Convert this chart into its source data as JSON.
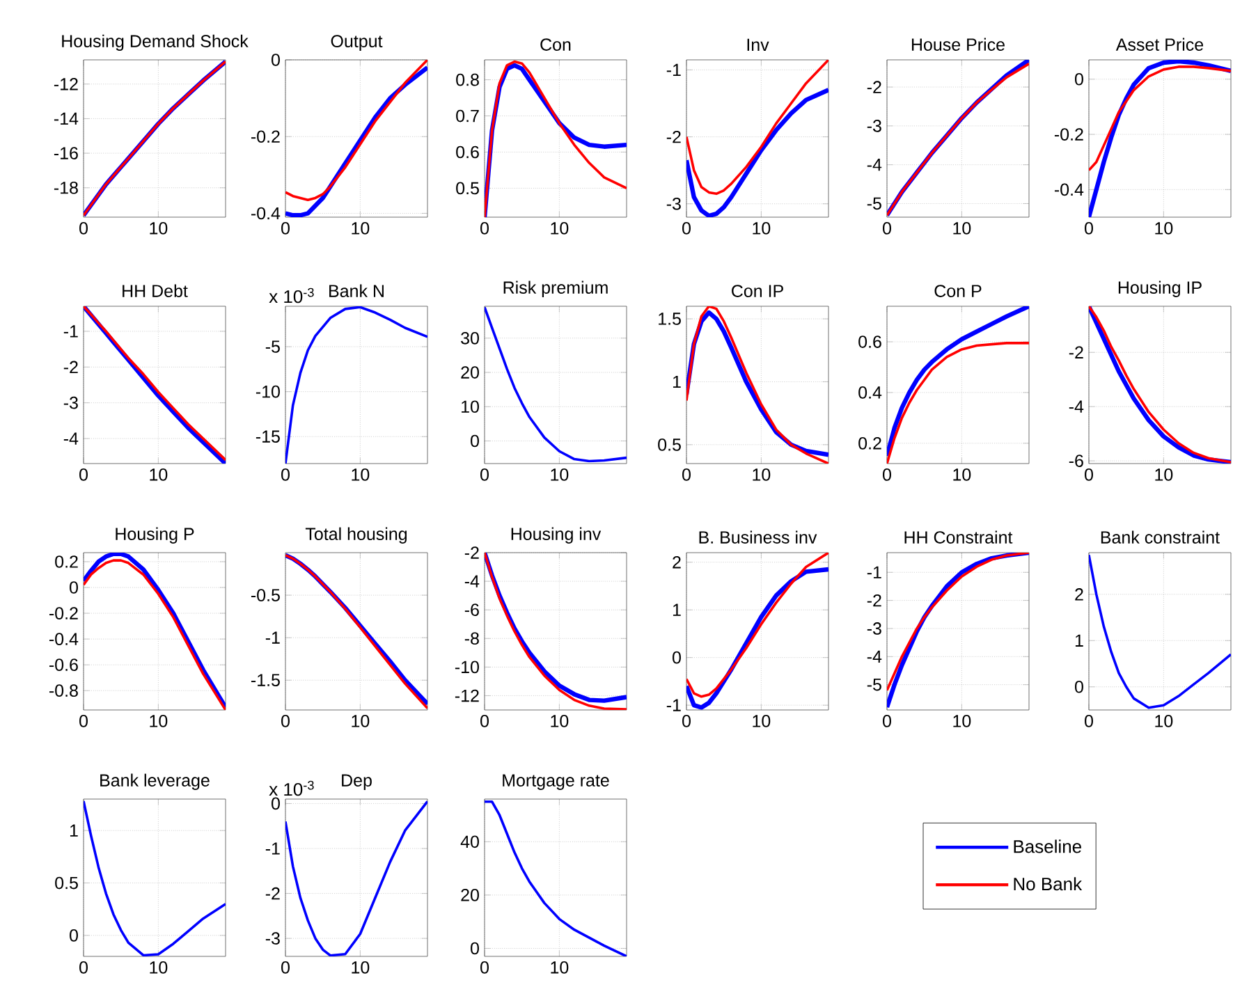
{
  "chart_data": [
    {
      "type": "line",
      "title": "Housing Demand Shock",
      "x": [
        0,
        1,
        2,
        3,
        4,
        5,
        6,
        8,
        10,
        12,
        14,
        16,
        19
      ],
      "xlim": [
        0,
        19
      ],
      "xticks": [
        0,
        10
      ],
      "ylim": [
        -19.7,
        -10.6
      ],
      "yticks": [
        -18,
        -16,
        -14,
        -12
      ],
      "grid": true,
      "legend": "bottom right",
      "series": [
        {
          "name": "Baseline",
          "color": "#0000ff",
          "values": [
            -19.6,
            -19.0,
            -18.4,
            -17.8,
            -17.3,
            -16.8,
            -16.3,
            -15.3,
            -14.3,
            -13.4,
            -12.6,
            -11.8,
            -10.7
          ]
        },
        {
          "name": "No Bank",
          "color": "#ff0000",
          "values": [
            -19.6,
            -19.0,
            -18.4,
            -17.8,
            -17.3,
            -16.8,
            -16.3,
            -15.3,
            -14.3,
            -13.4,
            -12.6,
            -11.8,
            -10.7
          ]
        }
      ]
    },
    {
      "type": "line",
      "title": "Output",
      "x": [
        0,
        1,
        2,
        3,
        4,
        5,
        6,
        8,
        10,
        12,
        14,
        16,
        19
      ],
      "xlim": [
        0,
        19
      ],
      "xticks": [
        0,
        10
      ],
      "ylim": [
        -0.41,
        0
      ],
      "yticks": [
        -0.4,
        -0.2,
        0
      ],
      "grid": true,
      "series": [
        {
          "color": "#0000ff",
          "values": [
            -0.4,
            -0.405,
            -0.405,
            -0.4,
            -0.38,
            -0.36,
            -0.33,
            -0.27,
            -0.21,
            -0.15,
            -0.1,
            -0.065,
            -0.02
          ]
        },
        {
          "color": "#ff0000",
          "values": [
            -0.345,
            -0.355,
            -0.36,
            -0.365,
            -0.36,
            -0.35,
            -0.33,
            -0.28,
            -0.22,
            -0.16,
            -0.11,
            -0.06,
            0
          ]
        }
      ]
    },
    {
      "type": "line",
      "title": "Con",
      "x": [
        0,
        1,
        2,
        3,
        4,
        5,
        6,
        8,
        10,
        12,
        14,
        16,
        19
      ],
      "xlim": [
        0,
        19
      ],
      "xticks": [
        0,
        10
      ],
      "ylim": [
        0.42,
        0.855
      ],
      "yticks": [
        0.5,
        0.6,
        0.7,
        0.8
      ],
      "grid": true,
      "series": [
        {
          "color": "#0000ff",
          "values": [
            0.42,
            0.66,
            0.78,
            0.83,
            0.84,
            0.83,
            0.8,
            0.74,
            0.68,
            0.64,
            0.62,
            0.615,
            0.62
          ]
        },
        {
          "color": "#ff0000",
          "values": [
            0.42,
            0.66,
            0.79,
            0.84,
            0.85,
            0.845,
            0.82,
            0.75,
            0.68,
            0.62,
            0.57,
            0.53,
            0.5
          ]
        }
      ]
    },
    {
      "type": "line",
      "title": "Inv",
      "x": [
        0,
        1,
        2,
        3,
        4,
        5,
        6,
        8,
        10,
        12,
        14,
        16,
        19
      ],
      "xlim": [
        0,
        19
      ],
      "xticks": [
        0,
        10
      ],
      "ylim": [
        -3.2,
        -0.85
      ],
      "yticks": [
        -3,
        -2,
        -1
      ],
      "grid": true,
      "series": [
        {
          "color": "#0000ff",
          "values": [
            -2.35,
            -2.9,
            -3.1,
            -3.18,
            -3.15,
            -3.05,
            -2.9,
            -2.55,
            -2.2,
            -1.9,
            -1.65,
            -1.45,
            -1.3
          ]
        },
        {
          "color": "#ff0000",
          "values": [
            -2.0,
            -2.5,
            -2.75,
            -2.83,
            -2.85,
            -2.8,
            -2.7,
            -2.45,
            -2.15,
            -1.8,
            -1.5,
            -1.2,
            -0.85
          ]
        }
      ]
    },
    {
      "type": "line",
      "title": "House Price",
      "x": [
        0,
        1,
        2,
        3,
        4,
        5,
        6,
        8,
        10,
        12,
        14,
        16,
        19
      ],
      "xlim": [
        0,
        19
      ],
      "xticks": [
        0,
        10
      ],
      "ylim": [
        -5.35,
        -1.3
      ],
      "yticks": [
        -5,
        -4,
        -3,
        -2
      ],
      "grid": true,
      "series": [
        {
          "color": "#0000ff",
          "values": [
            -5.3,
            -5.0,
            -4.7,
            -4.45,
            -4.2,
            -3.95,
            -3.7,
            -3.25,
            -2.8,
            -2.4,
            -2.05,
            -1.7,
            -1.3
          ]
        },
        {
          "color": "#ff0000",
          "values": [
            -5.3,
            -5.0,
            -4.7,
            -4.45,
            -4.2,
            -3.95,
            -3.7,
            -3.25,
            -2.8,
            -2.4,
            -2.07,
            -1.75,
            -1.4
          ]
        }
      ]
    },
    {
      "type": "line",
      "title": "Asset Price",
      "x": [
        0,
        1,
        2,
        3,
        4,
        5,
        6,
        8,
        10,
        12,
        14,
        16,
        19
      ],
      "xlim": [
        0,
        19
      ],
      "xticks": [
        0,
        10
      ],
      "ylim": [
        -0.5,
        0.07
      ],
      "yticks": [
        -0.4,
        -0.2,
        0
      ],
      "grid": true,
      "series": [
        {
          "color": "#0000ff",
          "values": [
            -0.5,
            -0.4,
            -0.3,
            -0.21,
            -0.13,
            -0.07,
            -0.02,
            0.04,
            0.06,
            0.065,
            0.06,
            0.05,
            0.03
          ]
        },
        {
          "color": "#ff0000",
          "values": [
            -0.33,
            -0.3,
            -0.24,
            -0.18,
            -0.12,
            -0.08,
            -0.04,
            0.01,
            0.035,
            0.045,
            0.045,
            0.04,
            0.03
          ]
        }
      ]
    },
    {
      "type": "line",
      "title": "HH Debt",
      "x": [
        0,
        1,
        2,
        3,
        4,
        5,
        6,
        8,
        10,
        12,
        14,
        16,
        19
      ],
      "xlim": [
        0,
        19
      ],
      "xticks": [
        0,
        10
      ],
      "ylim": [
        -4.7,
        -0.3
      ],
      "yticks": [
        -4,
        -3,
        -2,
        -1
      ],
      "grid": true,
      "series": [
        {
          "color": "#0000ff",
          "values": [
            -0.3,
            -0.55,
            -0.8,
            -1.05,
            -1.3,
            -1.55,
            -1.8,
            -2.3,
            -2.8,
            -3.25,
            -3.7,
            -4.1,
            -4.7
          ]
        },
        {
          "color": "#ff0000",
          "values": [
            -0.3,
            -0.53,
            -0.77,
            -1.0,
            -1.25,
            -1.5,
            -1.75,
            -2.2,
            -2.7,
            -3.15,
            -3.6,
            -4.0,
            -4.6
          ]
        }
      ]
    },
    {
      "type": "line",
      "title": "Bank N",
      "annotations": [
        "x 10$^{-3}$"
      ],
      "x": [
        0,
        1,
        2,
        3,
        4,
        5,
        6,
        8,
        10,
        12,
        14,
        16,
        19
      ],
      "xlim": [
        0,
        19
      ],
      "xticks": [
        0,
        10
      ],
      "ylim": [
        -18,
        -0.5
      ],
      "yticks": [
        -15,
        -10,
        -5
      ],
      "grid": true,
      "series": [
        {
          "color": "#0000ff",
          "values": [
            -18,
            -11.5,
            -7.9,
            -5.4,
            -3.8,
            -2.8,
            -1.8,
            -0.8,
            -0.6,
            -1.2,
            -2.0,
            -2.9,
            -3.9
          ]
        }
      ]
    },
    {
      "type": "line",
      "title": "Risk premium",
      "x": [
        0,
        1,
        2,
        3,
        4,
        5,
        6,
        8,
        10,
        12,
        14,
        16,
        19
      ],
      "xlim": [
        0,
        19
      ],
      "xticks": [
        0,
        10
      ],
      "ylim": [
        -6.6,
        39.3
      ],
      "yticks": [
        0,
        10,
        20,
        30
      ],
      "grid": true,
      "series": [
        {
          "color": "#0000ff",
          "values": [
            39,
            33,
            27,
            21,
            15.5,
            11,
            7,
            1,
            -3,
            -5.3,
            -5.9,
            -5.7,
            -4.9
          ]
        }
      ]
    },
    {
      "type": "line",
      "title": "Con IP",
      "x": [
        0,
        1,
        2,
        3,
        4,
        5,
        6,
        8,
        10,
        12,
        14,
        16,
        19
      ],
      "xlim": [
        0,
        19
      ],
      "xticks": [
        0,
        10
      ],
      "ylim": [
        0.35,
        1.6
      ],
      "yticks": [
        0.5,
        1,
        1.5
      ],
      "grid": true,
      "series": [
        {
          "color": "#0000ff",
          "values": [
            0.9,
            1.3,
            1.48,
            1.55,
            1.5,
            1.4,
            1.27,
            1.0,
            0.78,
            0.6,
            0.5,
            0.45,
            0.42
          ]
        },
        {
          "color": "#ff0000",
          "values": [
            0.85,
            1.3,
            1.52,
            1.6,
            1.58,
            1.48,
            1.35,
            1.07,
            0.82,
            0.62,
            0.5,
            0.43,
            0.35
          ]
        }
      ]
    },
    {
      "type": "line",
      "title": "Con P",
      "x": [
        0,
        1,
        2,
        3,
        4,
        5,
        6,
        8,
        10,
        12,
        14,
        16,
        19
      ],
      "xlim": [
        0,
        19
      ],
      "xticks": [
        0,
        10
      ],
      "ylim": [
        0.12,
        0.74
      ],
      "yticks": [
        0.2,
        0.4,
        0.6
      ],
      "grid": true,
      "series": [
        {
          "color": "#0000ff",
          "values": [
            0.15,
            0.26,
            0.34,
            0.4,
            0.45,
            0.49,
            0.52,
            0.57,
            0.61,
            0.64,
            0.67,
            0.7,
            0.74
          ]
        },
        {
          "color": "#ff0000",
          "values": [
            0.12,
            0.22,
            0.3,
            0.36,
            0.41,
            0.45,
            0.49,
            0.54,
            0.57,
            0.585,
            0.59,
            0.595,
            0.595
          ]
        }
      ]
    },
    {
      "type": "line",
      "title": "Housing IP",
      "x": [
        0,
        1,
        2,
        3,
        4,
        5,
        6,
        8,
        10,
        12,
        14,
        16,
        19
      ],
      "xlim": [
        0,
        19
      ],
      "xticks": [
        0,
        10
      ],
      "ylim": [
        -6.1,
        -0.3
      ],
      "yticks": [
        -6,
        -4,
        -2
      ],
      "grid": true,
      "series": [
        {
          "color": "#0000ff",
          "values": [
            -0.3,
            -0.9,
            -1.5,
            -2.1,
            -2.7,
            -3.2,
            -3.7,
            -4.5,
            -5.1,
            -5.5,
            -5.8,
            -5.95,
            -6.05
          ]
        },
        {
          "color": "#ff0000",
          "values": [
            -0.3,
            -0.7,
            -1.2,
            -1.8,
            -2.3,
            -2.85,
            -3.35,
            -4.2,
            -4.85,
            -5.35,
            -5.7,
            -5.9,
            -6.05
          ]
        }
      ]
    },
    {
      "type": "line",
      "title": "Housing P",
      "x": [
        0,
        1,
        2,
        3,
        4,
        5,
        6,
        8,
        10,
        12,
        14,
        16,
        19
      ],
      "xlim": [
        0,
        19
      ],
      "xticks": [
        0,
        10
      ],
      "ylim": [
        -0.95,
        0.27
      ],
      "yticks": [
        -0.8,
        -0.6,
        -0.4,
        -0.2,
        0,
        0.2
      ],
      "grid": true,
      "series": [
        {
          "color": "#0000ff",
          "values": [
            0.05,
            0.13,
            0.2,
            0.24,
            0.26,
            0.26,
            0.24,
            0.14,
            -0.02,
            -0.2,
            -0.42,
            -0.64,
            -0.93
          ]
        },
        {
          "color": "#ff0000",
          "values": [
            0.02,
            0.1,
            0.15,
            0.19,
            0.21,
            0.21,
            0.19,
            0.1,
            -0.05,
            -0.23,
            -0.45,
            -0.67,
            -0.95
          ]
        }
      ]
    },
    {
      "type": "line",
      "title": "Total housing",
      "x": [
        0,
        1,
        2,
        3,
        4,
        5,
        6,
        8,
        10,
        12,
        14,
        16,
        19
      ],
      "xlim": [
        0,
        19
      ],
      "xticks": [
        0,
        10
      ],
      "ylim": [
        -1.85,
        0
      ],
      "yticks": [
        -1.5,
        -1,
        -0.5
      ],
      "grid": true,
      "series": [
        {
          "color": "#0000ff",
          "values": [
            -0.03,
            -0.07,
            -0.13,
            -0.2,
            -0.28,
            -0.37,
            -0.46,
            -0.65,
            -0.86,
            -1.07,
            -1.28,
            -1.5,
            -1.78
          ]
        },
        {
          "color": "#ff0000",
          "values": [
            -0.03,
            -0.07,
            -0.13,
            -0.2,
            -0.28,
            -0.37,
            -0.46,
            -0.66,
            -0.88,
            -1.1,
            -1.32,
            -1.54,
            -1.83
          ]
        }
      ]
    },
    {
      "type": "line",
      "title": "Housing inv",
      "x": [
        0,
        1,
        2,
        3,
        4,
        5,
        6,
        8,
        10,
        12,
        14,
        16,
        19
      ],
      "xlim": [
        0,
        19
      ],
      "xticks": [
        0,
        10
      ],
      "ylim": [
        -13,
        -2
      ],
      "yticks": [
        -12,
        -10,
        -8,
        -6,
        -4,
        -2
      ],
      "grid": true,
      "series": [
        {
          "color": "#0000ff",
          "values": [
            -2,
            -3.6,
            -5,
            -6.2,
            -7.3,
            -8.2,
            -9.0,
            -10.3,
            -11.3,
            -11.9,
            -12.3,
            -12.35,
            -12.1
          ]
        },
        {
          "color": "#ff0000",
          "values": [
            -2,
            -3.7,
            -5.2,
            -6.4,
            -7.5,
            -8.45,
            -9.3,
            -10.6,
            -11.6,
            -12.3,
            -12.7,
            -12.9,
            -12.95
          ]
        }
      ]
    },
    {
      "type": "line",
      "title": "B. Business inv",
      "x": [
        0,
        1,
        2,
        3,
        4,
        5,
        6,
        8,
        10,
        12,
        14,
        16,
        19
      ],
      "xlim": [
        0,
        19
      ],
      "xticks": [
        0,
        10
      ],
      "ylim": [
        -1.1,
        2.2
      ],
      "yticks": [
        -1,
        0,
        1,
        2
      ],
      "grid": true,
      "series": [
        {
          "color": "#0000ff",
          "values": [
            -0.6,
            -1.0,
            -1.05,
            -0.95,
            -0.75,
            -0.5,
            -0.25,
            0.3,
            0.85,
            1.3,
            1.6,
            1.8,
            1.85
          ]
        },
        {
          "color": "#ff0000",
          "values": [
            -0.45,
            -0.75,
            -0.82,
            -0.78,
            -0.65,
            -0.45,
            -0.25,
            0.2,
            0.7,
            1.15,
            1.55,
            1.9,
            2.2
          ]
        }
      ]
    },
    {
      "type": "line",
      "title": "HH Constraint",
      "x": [
        0,
        1,
        2,
        3,
        4,
        5,
        6,
        8,
        10,
        12,
        14,
        16,
        19
      ],
      "xlim": [
        0,
        19
      ],
      "xticks": [
        0,
        10
      ],
      "ylim": [
        -5.9,
        -0.3
      ],
      "yticks": [
        -5,
        -4,
        -3,
        -2,
        -1
      ],
      "grid": true,
      "series": [
        {
          "color": "#0000ff",
          "values": [
            -5.8,
            -5.0,
            -4.3,
            -3.7,
            -3.1,
            -2.6,
            -2.2,
            -1.5,
            -1.0,
            -0.7,
            -0.5,
            -0.4,
            -0.3
          ]
        },
        {
          "color": "#ff0000",
          "values": [
            -5.2,
            -4.6,
            -4.0,
            -3.5,
            -3.0,
            -2.6,
            -2.25,
            -1.65,
            -1.15,
            -0.8,
            -0.55,
            -0.4,
            -0.3
          ]
        }
      ]
    },
    {
      "type": "line",
      "title": "Bank constraint",
      "x": [
        0,
        1,
        2,
        3,
        4,
        5,
        6,
        8,
        10,
        12,
        14,
        16,
        19
      ],
      "xlim": [
        0,
        19
      ],
      "xticks": [
        0,
        10
      ],
      "ylim": [
        -0.5,
        2.9
      ],
      "yticks": [
        0,
        1,
        2
      ],
      "grid": true,
      "series": [
        {
          "color": "#0000ff",
          "values": [
            2.85,
            2.0,
            1.3,
            0.75,
            0.3,
            0.0,
            -0.25,
            -0.45,
            -0.4,
            -0.2,
            0.05,
            0.3,
            0.7
          ]
        }
      ]
    },
    {
      "type": "line",
      "title": "Bank leverage",
      "x": [
        0,
        1,
        2,
        3,
        4,
        5,
        6,
        8,
        10,
        12,
        14,
        16,
        19
      ],
      "xlim": [
        0,
        19
      ],
      "xticks": [
        0,
        10
      ],
      "ylim": [
        -0.2,
        1.3
      ],
      "yticks": [
        0,
        0.5,
        1
      ],
      "grid": true,
      "series": [
        {
          "color": "#0000ff",
          "values": [
            1.28,
            0.95,
            0.65,
            0.4,
            0.2,
            0.05,
            -0.07,
            -0.19,
            -0.18,
            -0.08,
            0.04,
            0.16,
            0.3
          ]
        }
      ]
    },
    {
      "type": "line",
      "title": "Dep",
      "annotations": [
        "x 10$^{-3}$"
      ],
      "x": [
        0,
        1,
        2,
        3,
        4,
        5,
        6,
        8,
        10,
        12,
        14,
        16,
        19
      ],
      "xlim": [
        0,
        19
      ],
      "xticks": [
        0,
        10
      ],
      "ylim": [
        -3.4,
        0.1
      ],
      "yticks": [
        -3,
        -2,
        -1,
        0
      ],
      "grid": true,
      "series": [
        {
          "color": "#0000ff",
          "values": [
            -0.4,
            -1.4,
            -2.1,
            -2.6,
            -3.0,
            -3.25,
            -3.38,
            -3.35,
            -2.9,
            -2.1,
            -1.3,
            -0.6,
            0.05
          ]
        }
      ]
    },
    {
      "type": "line",
      "title": "Mortgage rate",
      "x": [
        0,
        1,
        2,
        3,
        4,
        5,
        6,
        8,
        10,
        12,
        14,
        16,
        19
      ],
      "xlim": [
        0,
        19
      ],
      "xticks": [
        0,
        10
      ],
      "ylim": [
        -3,
        56
      ],
      "yticks": [
        0,
        20,
        40
      ],
      "grid": true,
      "series": [
        {
          "color": "#0000ff",
          "values": [
            55,
            55,
            50,
            43,
            36,
            30,
            25,
            17,
            11,
            7,
            4,
            1,
            -3
          ]
        }
      ]
    }
  ]
}
